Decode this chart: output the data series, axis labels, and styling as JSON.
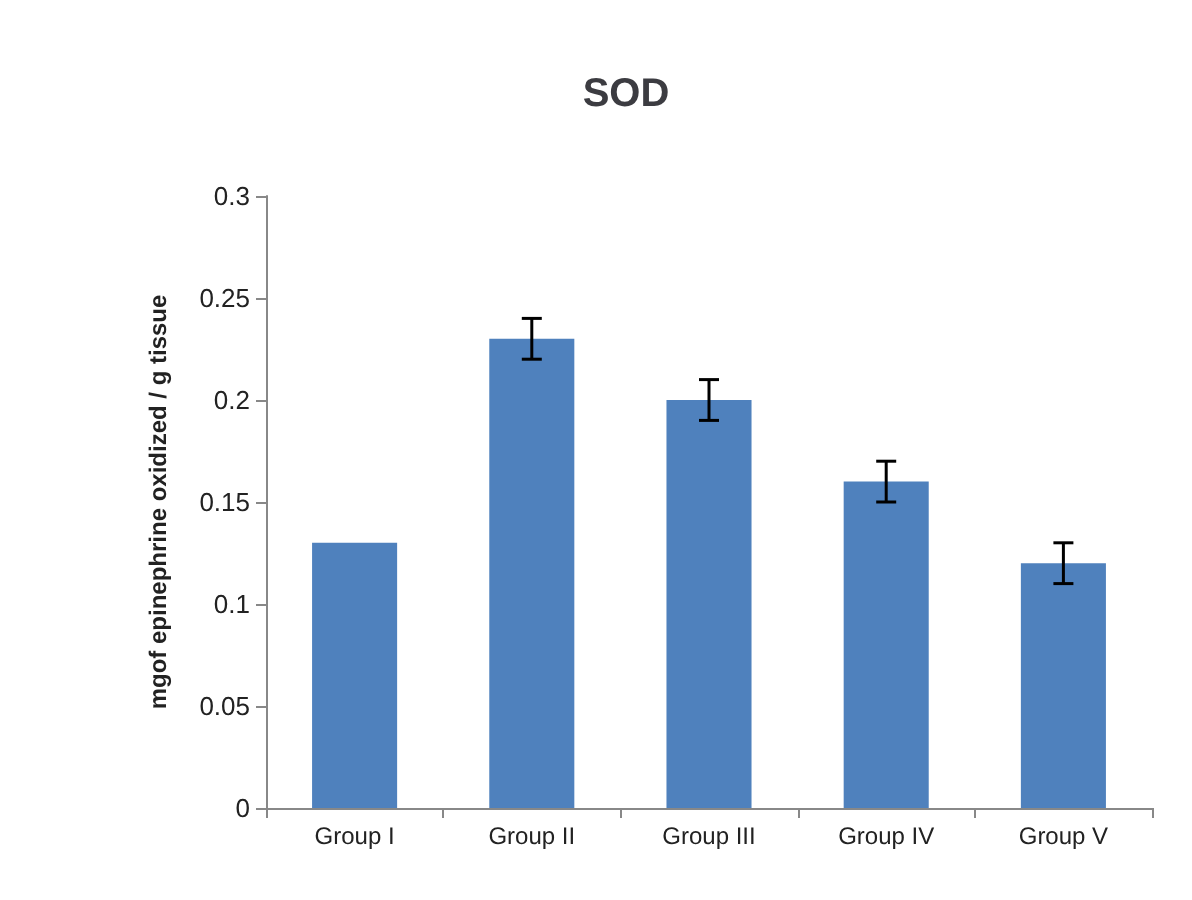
{
  "chart_data": {
    "type": "bar",
    "title": "SOD",
    "ylabel": "mgof epinephrine oxidized / g tissue",
    "categories": [
      "Group I",
      "Group II",
      "Group III",
      "Group IV",
      "Group V"
    ],
    "values": [
      0.13,
      0.23,
      0.2,
      0.16,
      0.12
    ],
    "errors": [
      null,
      0.01,
      0.01,
      0.01,
      0.01
    ],
    "color": "#4f81bd",
    "ylim": [
      0,
      0.3
    ],
    "yticks": [
      0,
      0.05,
      0.1,
      0.15,
      0.2,
      0.25,
      0.3
    ]
  }
}
